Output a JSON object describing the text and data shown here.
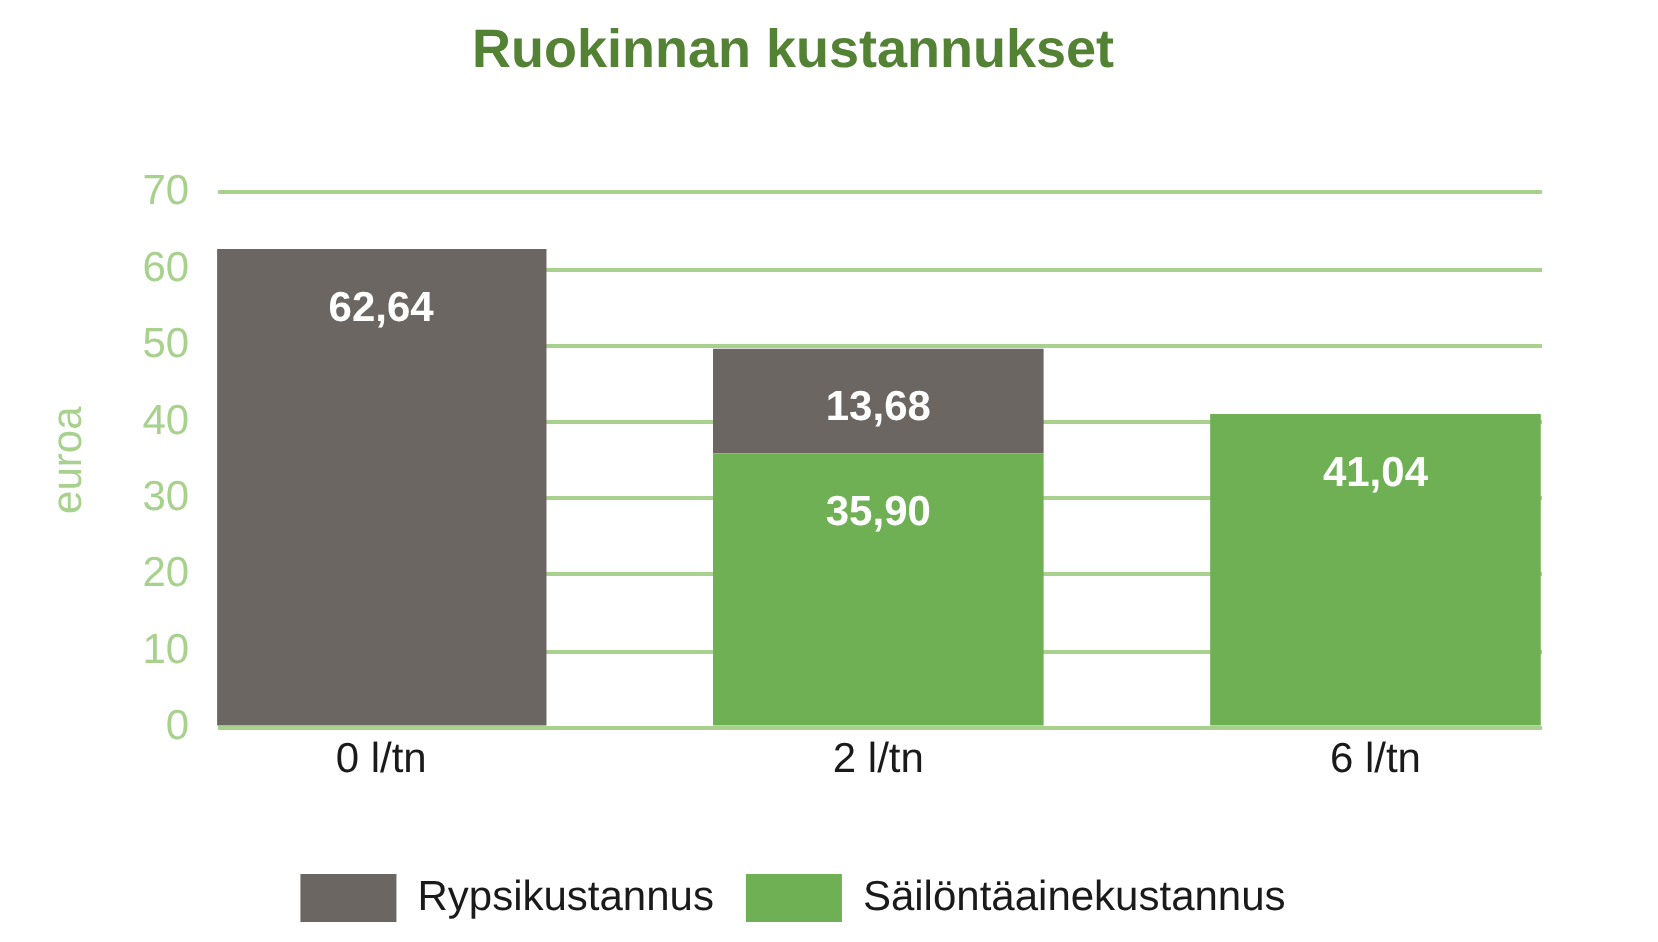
{
  "chart_data": {
    "type": "bar",
    "title": "Ruokinnan kustannukset",
    "ylabel": "euroa",
    "categories": [
      "0 l/tn",
      "2 l/tn",
      "6 l/tn"
    ],
    "stacked": true,
    "series": [
      {
        "name": "Säilöntäainekustannus",
        "color": "#70b055",
        "values": [
          null,
          35.9,
          41.04
        ],
        "value_labels": [
          null,
          "35,90",
          "41,04"
        ]
      },
      {
        "name": "Rypsikustannus",
        "color": "#6b6662",
        "values": [
          62.64,
          13.68,
          null
        ],
        "value_labels": [
          "62,64",
          "13,68",
          null
        ]
      }
    ],
    "ylim": [
      0,
      70
    ],
    "yticks": [
      0,
      10,
      20,
      30,
      40,
      50,
      60,
      70
    ],
    "grid": "y",
    "legend": "bottom"
  }
}
